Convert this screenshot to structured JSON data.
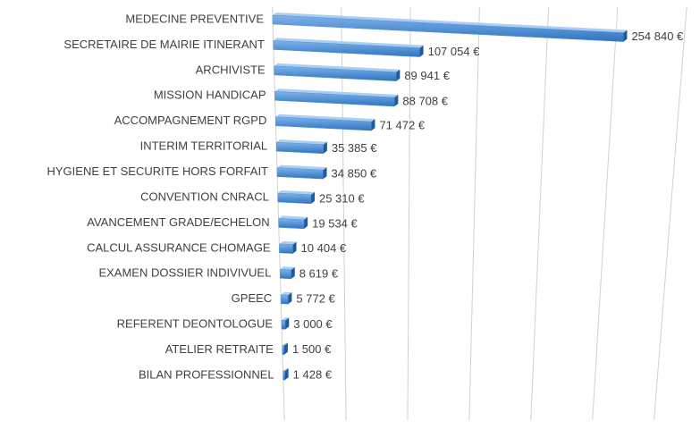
{
  "chart_data": {
    "type": "bar",
    "orientation": "horizontal",
    "categories": [
      "MEDECINE PREVENTIVE",
      "SECRETAIRE DE MAIRIE ITINERANT",
      "ARCHIVISTE",
      "MISSION HANDICAP",
      "ACCOMPAGNEMENT RGPD",
      "INTERIM TERRITORIAL",
      "HYGIENE ET SECURITE HORS FORFAIT",
      "CONVENTION CNRACL",
      "AVANCEMENT GRADE/ECHELON",
      "CALCUL ASSURANCE CHOMAGE",
      "EXAMEN DOSSIER INDIVIVUEL",
      "GPEEC",
      "REFERENT DEONTOLOGUE",
      "ATELIER RETRAITE",
      "BILAN PROFESSIONNEL"
    ],
    "values": [
      254840,
      107054,
      89941,
      88708,
      71472,
      35385,
      34850,
      25310,
      19534,
      10404,
      8619,
      5772,
      3000,
      1500,
      1428
    ],
    "value_labels": [
      "254 840 €",
      "107 054 €",
      "89 941 €",
      "88 708 €",
      "71 472 €",
      "35 385 €",
      "34 850 €",
      "25 310 €",
      "19 534 €",
      "10 404 €",
      "8 619 €",
      "5 772 €",
      "3 000 €",
      "1 500 €",
      "1 428 €"
    ],
    "color": "#4a8fd6",
    "xlim": [
      0,
      300000
    ],
    "xticks": [
      0,
      50000,
      100000,
      150000,
      200000,
      250000,
      300000
    ],
    "grid": true
  }
}
